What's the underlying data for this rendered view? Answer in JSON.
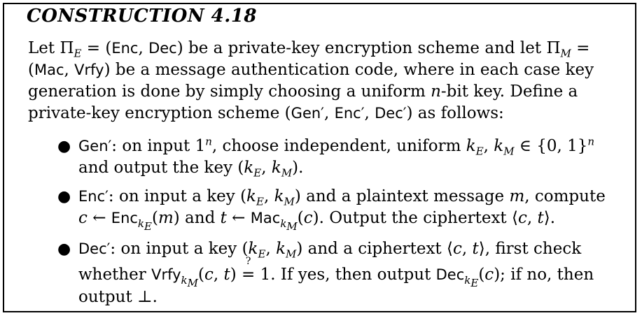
{
  "title": "CONSTRUCTION 4.18",
  "intro": [
    "Let Π_E = (Enc, Dec) be a private-key encryption scheme and let Π_M =",
    "(Mac, Vrfy) be a message authentication code, where in each case key",
    "generation is done by simply choosing a uniform n-bit key. Define a",
    "private-key encryption scheme (Gen′, Enc′, Dec′) as follows:"
  ],
  "bullets": [
    {
      "name": "Gen′",
      "lines": [
        "Gen′: on input 1^n, choose independent, uniform k_E, k_M ∈ {0,1}^n",
        "and output the key (k_E, k_M)."
      ]
    },
    {
      "name": "Enc′",
      "lines": [
        "Enc′: on input a key (k_E, k_M) and a plaintext message m, compute",
        "c ← Enc_{k_E}(m) and t ← Mac_{k_M}(c). Output the ciphertext ⟨c, t⟩."
      ]
    },
    {
      "name": "Dec′",
      "lines": [
        "Dec′: on input a key (k_E, k_M) and a ciphertext ⟨c, t⟩, first check",
        "whether Vrfy_{k_M}(c, t) ≟ 1. If yes, then output Dec_{k_E}(c); if no, then",
        "output ⊥."
      ]
    }
  ]
}
